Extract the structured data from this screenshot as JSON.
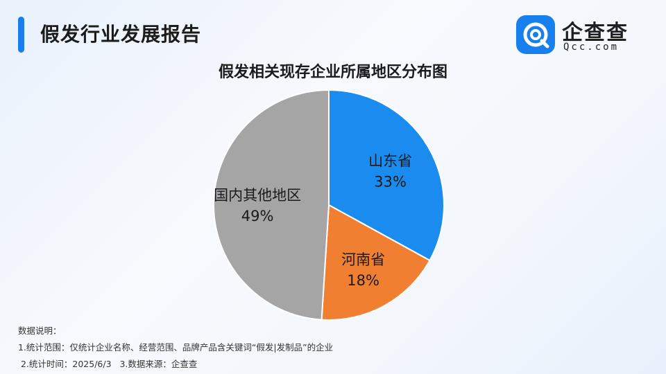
{
  "header": {
    "title": "假发行业发展报告"
  },
  "logo": {
    "name": "企查查",
    "domain": "Qcc.com",
    "brand_color": "#1780ee"
  },
  "chart_data": {
    "type": "pie",
    "title": "假发相关现存企业所属地区分布图",
    "slices": [
      {
        "label": "山东省",
        "value": 33,
        "display": "33%",
        "color": "#1a8cf0"
      },
      {
        "label": "河南省",
        "value": 18,
        "display": "18%",
        "color": "#f07f32"
      },
      {
        "label": "国内其他地区",
        "value": 49,
        "display": "49%",
        "color": "#a5a5a5"
      }
    ]
  },
  "notes": {
    "heading": "数据说明：",
    "line1": "1.统计范围：仅统计企业名称、经营范围、品牌产品含关键词“假发|发制品”的企业",
    "line2": " 2.统计时间：2025/6/3   3.数据来源：企查查"
  }
}
